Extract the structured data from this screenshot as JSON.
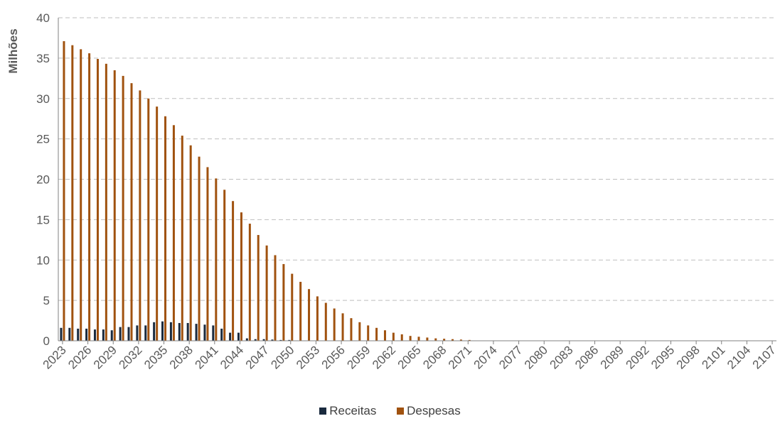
{
  "chart_data": {
    "type": "bar",
    "ylabel": "Milhões",
    "xlabel": "",
    "ylim": [
      0,
      40
    ],
    "yticks": [
      0,
      5,
      10,
      15,
      20,
      25,
      30,
      35,
      40
    ],
    "grid": true,
    "legend_position": "bottom",
    "x_start": 2023,
    "x_end": 2107,
    "tick_labels": [
      "2023",
      "2026",
      "2029",
      "2032",
      "2035",
      "2038",
      "2041",
      "2044",
      "2047",
      "2050",
      "2053",
      "2056",
      "2059",
      "2062",
      "2065",
      "2068",
      "2071",
      "2074",
      "2077",
      "2080",
      "2083",
      "2086",
      "2089",
      "2092",
      "2095",
      "2098",
      "2101",
      "2104",
      "2107"
    ],
    "series": [
      {
        "name": "Receitas",
        "color": "#1a2a3e",
        "values": [
          1.6,
          1.6,
          1.5,
          1.5,
          1.4,
          1.4,
          1.3,
          1.7,
          1.7,
          1.9,
          1.9,
          2.3,
          2.4,
          2.3,
          2.2,
          2.2,
          2.1,
          2.0,
          1.9,
          1.5,
          1.0,
          1.0,
          0.3,
          0.2,
          0.2,
          0.15,
          0.1,
          0.1,
          0,
          0,
          0,
          0,
          0,
          0,
          0,
          0,
          0,
          0,
          0,
          0,
          0,
          0,
          0,
          0,
          0,
          0,
          0,
          0,
          0,
          0,
          0,
          0,
          0,
          0,
          0,
          0,
          0,
          0,
          0,
          0,
          0,
          0,
          0,
          0,
          0,
          0,
          0,
          0,
          0,
          0,
          0,
          0,
          0,
          0,
          0,
          0,
          0,
          0,
          0,
          0,
          0,
          0,
          0,
          0,
          0
        ]
      },
      {
        "name": "Despesas",
        "color": "#a0520f",
        "values": [
          37.1,
          36.6,
          36.1,
          35.6,
          34.9,
          34.3,
          33.5,
          32.8,
          31.9,
          31.0,
          30.0,
          29.0,
          27.8,
          26.7,
          25.4,
          24.2,
          22.8,
          21.5,
          20.1,
          18.7,
          17.3,
          15.9,
          14.5,
          13.1,
          11.8,
          10.6,
          9.5,
          8.3,
          7.3,
          6.4,
          5.5,
          4.7,
          4.0,
          3.4,
          2.8,
          2.3,
          1.9,
          1.6,
          1.3,
          1.0,
          0.8,
          0.6,
          0.5,
          0.4,
          0.3,
          0.25,
          0.2,
          0.15,
          0.1,
          0,
          0,
          0,
          0,
          0,
          0,
          0,
          0,
          0,
          0,
          0,
          0,
          0,
          0,
          0,
          0,
          0,
          0,
          0,
          0,
          0,
          0,
          0,
          0,
          0,
          0,
          0,
          0,
          0,
          0,
          0,
          0,
          0,
          0,
          0,
          0
        ]
      }
    ]
  }
}
